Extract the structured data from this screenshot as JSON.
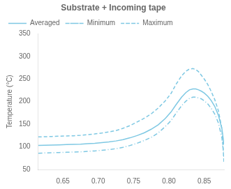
{
  "chart_data": {
    "type": "line",
    "title": "Substrate + Incoming tape",
    "ylabel": "Temperature (°C)",
    "x": [
      0.615,
      0.625,
      0.635,
      0.645,
      0.655,
      0.665,
      0.675,
      0.685,
      0.695,
      0.705,
      0.715,
      0.725,
      0.735,
      0.745,
      0.755,
      0.765,
      0.775,
      0.785,
      0.795,
      0.803,
      0.81,
      0.818,
      0.824,
      0.829,
      0.834,
      0.838,
      0.842,
      0.846,
      0.85,
      0.855,
      0.86,
      0.865,
      0.87,
      0.875,
      0.878
    ],
    "series": [
      {
        "name": "Averaged",
        "color": "#7ec8e3",
        "line_style": "solid",
        "values": [
          103,
          103.5,
          104,
          104.5,
          105,
          105.5,
          106,
          107,
          108,
          109.5,
          111,
          113,
          116,
          120,
          125,
          131,
          139,
          149,
          163,
          177,
          193,
          210,
          220,
          226,
          228,
          228,
          226,
          223,
          219,
          212,
          202,
          189,
          170,
          140,
          105
        ]
      },
      {
        "name": "Minimum",
        "color": "#7ec8e3",
        "line_style": "dashdot",
        "values": [
          86,
          86.5,
          87,
          87.5,
          88,
          88.5,
          89,
          90,
          91,
          92.5,
          94,
          96,
          99,
          103,
          108,
          114,
          121,
          131,
          145,
          158,
          174,
          191,
          201,
          207,
          210,
          210,
          208,
          206,
          202,
          195,
          185,
          172,
          153,
          120,
          78
        ]
      },
      {
        "name": "Maximum",
        "color": "#7ec8e3",
        "line_style": "dashed",
        "values": [
          122,
          122.5,
          123,
          123.5,
          124,
          124.5,
          125.5,
          127,
          128.5,
          130.5,
          133,
          136,
          141,
          147,
          155,
          163,
          173,
          186,
          202,
          218,
          238,
          257,
          267,
          272,
          273,
          271,
          266,
          258,
          250,
          238,
          222,
          204,
          180,
          140,
          63
        ]
      }
    ],
    "xlim": [
      0.615,
      0.878
    ],
    "ylim": [
      50,
      350
    ],
    "xticks": [
      {
        "value": 0.65,
        "label": "0.65"
      },
      {
        "value": 0.7,
        "label": "0.70"
      },
      {
        "value": 0.75,
        "label": "0.75"
      },
      {
        "value": 0.8,
        "label": "0.80"
      },
      {
        "value": 0.85,
        "label": "0.85"
      }
    ],
    "yticks": [
      50,
      100,
      150,
      200,
      250,
      300,
      350
    ],
    "legend": "upper left",
    "grid": false
  }
}
